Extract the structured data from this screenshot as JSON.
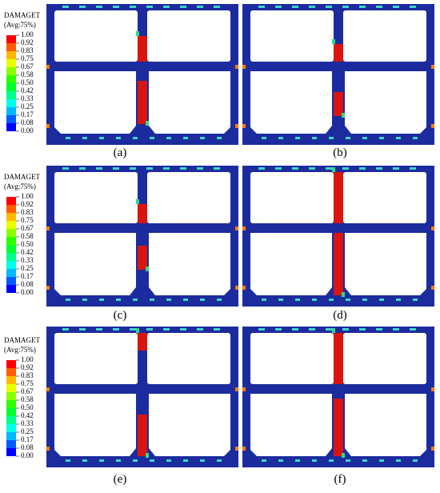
{
  "legends": [
    {
      "title": "DAMAGET",
      "subtitle": "(Avg:75%)",
      "levels": [
        "1.00",
        "0.92",
        "0.83",
        "0.75",
        "0.67",
        "0.58",
        "0.50",
        "0.42",
        "0.33",
        "0.25",
        "0.17",
        "0.08",
        "0.00"
      ]
    },
    {
      "title": "DAMAGET",
      "subtitle": "(Avg:75%)",
      "levels": [
        "1.00",
        "0.92",
        "0.83",
        "0.75",
        "0.67",
        "0.58",
        "0.50",
        "0.42",
        "0.33",
        "0.25",
        "0.17",
        "0.08",
        "0.00"
      ]
    },
    {
      "title": "DAMAGET",
      "subtitle": "(Avg:75%)",
      "levels": [
        "1.00",
        "0.92",
        "0.83",
        "0.75",
        "0.67",
        "0.58",
        "0.50",
        "0.42",
        "0.33",
        "0.25",
        "0.17",
        "0.08",
        "0.00"
      ]
    }
  ],
  "legend_colors": [
    "#ff0000",
    "#ff5c00",
    "#ffb900",
    "#e8ff00",
    "#8bff00",
    "#2eff00",
    "#00ff2e",
    "#00ff8b",
    "#00ffe8",
    "#00b9ff",
    "#005cff",
    "#0000ff"
  ],
  "panels": [
    {
      "label": "(a)"
    },
    {
      "label": "(b)"
    },
    {
      "label": "(c)"
    },
    {
      "label": "(d)"
    },
    {
      "label": "(e)"
    },
    {
      "label": "(f)"
    }
  ]
}
